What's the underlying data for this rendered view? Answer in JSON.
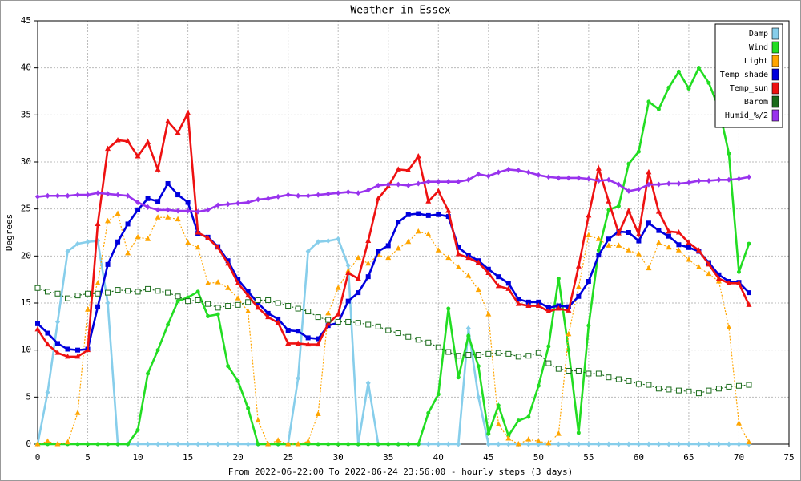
{
  "chart_data": {
    "type": "line",
    "title": "Weather in Essex",
    "xlabel": "From 2022-06-22:00 To 2022-06-24 23:56:00 - hourly steps (3 days)",
    "ylabel": "Degrees",
    "x": [
      0,
      1,
      2,
      3,
      4,
      5,
      6,
      7,
      8,
      9,
      10,
      11,
      12,
      13,
      14,
      15,
      16,
      17,
      18,
      19,
      20,
      21,
      22,
      23,
      24,
      25,
      26,
      27,
      28,
      29,
      30,
      31,
      32,
      33,
      34,
      35,
      36,
      37,
      38,
      39,
      40,
      41,
      42,
      43,
      44,
      45,
      46,
      47,
      48,
      49,
      50,
      51,
      52,
      53,
      54,
      55,
      56,
      57,
      58,
      59,
      60,
      61,
      62,
      63,
      64,
      65,
      66,
      67,
      68,
      69,
      70,
      71
    ],
    "xlim": [
      0,
      75
    ],
    "xticks": [
      0,
      5,
      10,
      15,
      20,
      25,
      30,
      35,
      40,
      45,
      50,
      55,
      60,
      65,
      70,
      75
    ],
    "ylim": [
      0,
      45
    ],
    "yticks": [
      0,
      5,
      10,
      15,
      20,
      25,
      30,
      35,
      40,
      45
    ],
    "grid": true,
    "legend": "upper right",
    "series": [
      {
        "name": "Damp",
        "color": "#87ceeb",
        "marker": "diamond",
        "dashed": false,
        "values": [
          0,
          5.5,
          13,
          20.5,
          21.3,
          21.5,
          21.6,
          15,
          0,
          0,
          0,
          0,
          0,
          0,
          0,
          0,
          0,
          0,
          0,
          0,
          0,
          0,
          0,
          0,
          0,
          0,
          7,
          20.5,
          21.5,
          21.6,
          21.8,
          19,
          0,
          6.5,
          0,
          0,
          0,
          0,
          0,
          0,
          0,
          0,
          0,
          12.3,
          5,
          0,
          0,
          0,
          0,
          0,
          0,
          0,
          0,
          0,
          0,
          0,
          0,
          0,
          0,
          0,
          0,
          0,
          0,
          0,
          0,
          0,
          0,
          0,
          0,
          0,
          0,
          0
        ]
      },
      {
        "name": "Wind",
        "color": "#22dd22",
        "marker": "circle",
        "dashed": false,
        "values": [
          0,
          0,
          0,
          0,
          0,
          0,
          0,
          0,
          0,
          0,
          1.5,
          7.5,
          10,
          12.7,
          15.2,
          15.6,
          16.2,
          13.6,
          13.8,
          8.3,
          6.7,
          3.8,
          0,
          0,
          0,
          0,
          0,
          0,
          0,
          0,
          0,
          0,
          0,
          0,
          0,
          0,
          0,
          0,
          0,
          3.3,
          5.3,
          14.4,
          7.1,
          11.5,
          8.3,
          1.1,
          4.1,
          0.9,
          2.5,
          2.9,
          6.2,
          10.4,
          17.6,
          10,
          1.2,
          12.6,
          20.6,
          24.9,
          25.3,
          29.8,
          31.1,
          36.4,
          35.6,
          37.9,
          39.6,
          37.8,
          40,
          38.4,
          35.7,
          30.9,
          18.3,
          21.3
        ]
      },
      {
        "name": "Light",
        "color": "#ffa500",
        "marker": "triangle",
        "dashed": true,
        "values": [
          0,
          0.3,
          0,
          0.2,
          3.3,
          14.3,
          17.1,
          23.7,
          24.5,
          20.3,
          22,
          21.8,
          24.1,
          24.1,
          23.9,
          21.4,
          20.9,
          17.1,
          17.2,
          16.6,
          15.5,
          14.1,
          2.5,
          0,
          0.4,
          0,
          0,
          0.3,
          3.2,
          13.9,
          16.6,
          18.4,
          19.8,
          19.2,
          20.1,
          19.8,
          20.8,
          21.5,
          22.6,
          22.3,
          20.6,
          19.8,
          18.8,
          17.9,
          16.4,
          13.8,
          2.1,
          0.6,
          0,
          0.5,
          0.3,
          0.1,
          1.1,
          11.7,
          16.7,
          22.2,
          21.8,
          21.1,
          21.1,
          20.6,
          20.2,
          18.7,
          21.4,
          20.9,
          20.6,
          19.6,
          18.8,
          18.1,
          17.3,
          12.4,
          2.2,
          0.2
        ]
      },
      {
        "name": "Temp_shade",
        "color": "#0000dd",
        "marker": "square",
        "dashed": false,
        "values": [
          12.8,
          11.8,
          10.7,
          10.1,
          10,
          10.1,
          14.6,
          19.1,
          21.5,
          23.4,
          24.9,
          26.1,
          25.8,
          27.7,
          26.5,
          25.7,
          22.4,
          22,
          21,
          19.5,
          17.5,
          16.2,
          15,
          13.9,
          13.3,
          12.1,
          12,
          11.3,
          11.2,
          12.6,
          12.9,
          15.2,
          16.1,
          17.8,
          20.5,
          21.1,
          23.6,
          24.4,
          24.5,
          24.3,
          24.4,
          24.2,
          20.9,
          20.1,
          19.5,
          18.6,
          17.8,
          17.1,
          15.4,
          15.1,
          15.1,
          14.5,
          14.7,
          14.6,
          15.7,
          17.3,
          20.1,
          21.8,
          22.6,
          22.5,
          21.6,
          23.5,
          22.7,
          22.1,
          21.2,
          20.9,
          20.5,
          19.3,
          18,
          17.3,
          17.2,
          16.1
        ]
      },
      {
        "name": "Temp_sun",
        "color": "#ee1111",
        "marker": "triangle",
        "dashed": false,
        "values": [
          12.2,
          10.6,
          9.7,
          9.3,
          9.3,
          10,
          23.4,
          31.4,
          32.3,
          32.2,
          30.6,
          32.1,
          29.2,
          34.3,
          33.1,
          35.2,
          22.5,
          21.9,
          20.9,
          19.2,
          17.1,
          15.8,
          14.5,
          13.5,
          12.9,
          10.7,
          10.7,
          10.6,
          10.6,
          12.8,
          13.8,
          18.2,
          17.6,
          21.6,
          26.1,
          27.4,
          29.2,
          29.1,
          30.6,
          25.8,
          26.9,
          24.8,
          20.2,
          19.8,
          19.3,
          18.2,
          16.8,
          16.5,
          14.9,
          14.7,
          14.7,
          14.1,
          14.4,
          14.2,
          18.9,
          24.3,
          29.3,
          25.8,
          22.4,
          24.8,
          22.3,
          28.9,
          24.7,
          22.6,
          22.5,
          21.4,
          20.6,
          19.1,
          17.6,
          17.1,
          17.1,
          14.8
        ]
      },
      {
        "name": "Barom",
        "color": "#1a6b1a",
        "marker": "hollow-square",
        "dashed": true,
        "values": [
          16.6,
          16.2,
          16,
          15.5,
          15.8,
          16,
          16,
          16.1,
          16.4,
          16.3,
          16.2,
          16.5,
          16.3,
          16.1,
          15.7,
          15.2,
          15.3,
          14.9,
          14.5,
          14.7,
          14.8,
          15.1,
          15.3,
          15.3,
          15,
          14.7,
          14.4,
          14.1,
          13.5,
          13.2,
          13,
          13,
          12.9,
          12.7,
          12.5,
          12.1,
          11.8,
          11.4,
          11.1,
          10.8,
          10.3,
          9.8,
          9.4,
          9.5,
          9.5,
          9.6,
          9.7,
          9.6,
          9.3,
          9.4,
          9.7,
          8.6,
          8,
          7.8,
          7.8,
          7.5,
          7.5,
          7.1,
          6.9,
          6.7,
          6.4,
          6.3,
          5.9,
          5.8,
          5.7,
          5.6,
          5.4,
          5.7,
          5.9,
          6.1,
          6.2,
          6.3
        ]
      },
      {
        "name": "Humid_%/2",
        "color": "#9933ee",
        "marker": "diamond",
        "dashed": false,
        "values": [
          26.3,
          26.4,
          26.4,
          26.4,
          26.5,
          26.5,
          26.7,
          26.6,
          26.5,
          26.4,
          25.7,
          25.2,
          24.9,
          24.9,
          24.8,
          24.8,
          24.7,
          24.9,
          25.4,
          25.5,
          25.6,
          25.7,
          26,
          26.1,
          26.3,
          26.5,
          26.4,
          26.4,
          26.5,
          26.6,
          26.7,
          26.8,
          26.7,
          27,
          27.5,
          27.6,
          27.6,
          27.5,
          27.7,
          27.9,
          27.9,
          27.9,
          27.9,
          28.1,
          28.7,
          28.5,
          28.9,
          29.2,
          29.1,
          28.9,
          28.6,
          28.4,
          28.3,
          28.3,
          28.3,
          28.2,
          28,
          28.1,
          27.6,
          26.9,
          27.1,
          27.6,
          27.6,
          27.7,
          27.7,
          27.8,
          28,
          28,
          28.1,
          28.1,
          28.2,
          28.4
        ]
      }
    ]
  }
}
